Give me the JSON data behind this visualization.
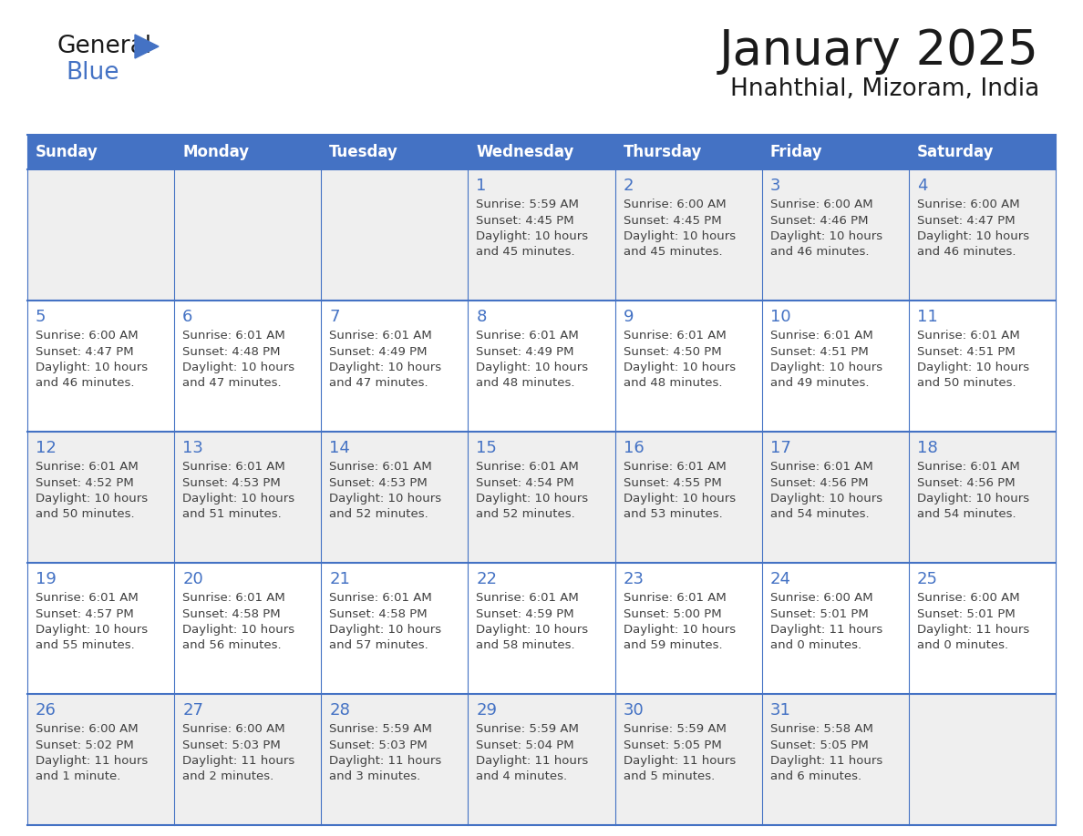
{
  "title": "January 2025",
  "subtitle": "Hnahthial, Mizoram, India",
  "header_bg": "#4472C4",
  "header_text_color": "#FFFFFF",
  "weekdays": [
    "Sunday",
    "Monday",
    "Tuesday",
    "Wednesday",
    "Thursday",
    "Friday",
    "Saturday"
  ],
  "row_bg_even": "#EFEFEF",
  "row_bg_odd": "#FFFFFF",
  "grid_line_color": "#4472C4",
  "day_number_color": "#4472C4",
  "text_color": "#404040",
  "calendar": [
    [
      {
        "day": "",
        "sunrise": "",
        "sunset": "",
        "daylight": ""
      },
      {
        "day": "",
        "sunrise": "",
        "sunset": "",
        "daylight": ""
      },
      {
        "day": "",
        "sunrise": "",
        "sunset": "",
        "daylight": ""
      },
      {
        "day": "1",
        "sunrise": "5:59 AM",
        "sunset": "4:45 PM",
        "dl1": "Daylight: 10 hours",
        "dl2": "and 45 minutes."
      },
      {
        "day": "2",
        "sunrise": "6:00 AM",
        "sunset": "4:45 PM",
        "dl1": "Daylight: 10 hours",
        "dl2": "and 45 minutes."
      },
      {
        "day": "3",
        "sunrise": "6:00 AM",
        "sunset": "4:46 PM",
        "dl1": "Daylight: 10 hours",
        "dl2": "and 46 minutes."
      },
      {
        "day": "4",
        "sunrise": "6:00 AM",
        "sunset": "4:47 PM",
        "dl1": "Daylight: 10 hours",
        "dl2": "and 46 minutes."
      }
    ],
    [
      {
        "day": "5",
        "sunrise": "6:00 AM",
        "sunset": "4:47 PM",
        "dl1": "Daylight: 10 hours",
        "dl2": "and 46 minutes."
      },
      {
        "day": "6",
        "sunrise": "6:01 AM",
        "sunset": "4:48 PM",
        "dl1": "Daylight: 10 hours",
        "dl2": "and 47 minutes."
      },
      {
        "day": "7",
        "sunrise": "6:01 AM",
        "sunset": "4:49 PM",
        "dl1": "Daylight: 10 hours",
        "dl2": "and 47 minutes."
      },
      {
        "day": "8",
        "sunrise": "6:01 AM",
        "sunset": "4:49 PM",
        "dl1": "Daylight: 10 hours",
        "dl2": "and 48 minutes."
      },
      {
        "day": "9",
        "sunrise": "6:01 AM",
        "sunset": "4:50 PM",
        "dl1": "Daylight: 10 hours",
        "dl2": "and 48 minutes."
      },
      {
        "day": "10",
        "sunrise": "6:01 AM",
        "sunset": "4:51 PM",
        "dl1": "Daylight: 10 hours",
        "dl2": "and 49 minutes."
      },
      {
        "day": "11",
        "sunrise": "6:01 AM",
        "sunset": "4:51 PM",
        "dl1": "Daylight: 10 hours",
        "dl2": "and 50 minutes."
      }
    ],
    [
      {
        "day": "12",
        "sunrise": "6:01 AM",
        "sunset": "4:52 PM",
        "dl1": "Daylight: 10 hours",
        "dl2": "and 50 minutes."
      },
      {
        "day": "13",
        "sunrise": "6:01 AM",
        "sunset": "4:53 PM",
        "dl1": "Daylight: 10 hours",
        "dl2": "and 51 minutes."
      },
      {
        "day": "14",
        "sunrise": "6:01 AM",
        "sunset": "4:53 PM",
        "dl1": "Daylight: 10 hours",
        "dl2": "and 52 minutes."
      },
      {
        "day": "15",
        "sunrise": "6:01 AM",
        "sunset": "4:54 PM",
        "dl1": "Daylight: 10 hours",
        "dl2": "and 52 minutes."
      },
      {
        "day": "16",
        "sunrise": "6:01 AM",
        "sunset": "4:55 PM",
        "dl1": "Daylight: 10 hours",
        "dl2": "and 53 minutes."
      },
      {
        "day": "17",
        "sunrise": "6:01 AM",
        "sunset": "4:56 PM",
        "dl1": "Daylight: 10 hours",
        "dl2": "and 54 minutes."
      },
      {
        "day": "18",
        "sunrise": "6:01 AM",
        "sunset": "4:56 PM",
        "dl1": "Daylight: 10 hours",
        "dl2": "and 54 minutes."
      }
    ],
    [
      {
        "day": "19",
        "sunrise": "6:01 AM",
        "sunset": "4:57 PM",
        "dl1": "Daylight: 10 hours",
        "dl2": "and 55 minutes."
      },
      {
        "day": "20",
        "sunrise": "6:01 AM",
        "sunset": "4:58 PM",
        "dl1": "Daylight: 10 hours",
        "dl2": "and 56 minutes."
      },
      {
        "day": "21",
        "sunrise": "6:01 AM",
        "sunset": "4:58 PM",
        "dl1": "Daylight: 10 hours",
        "dl2": "and 57 minutes."
      },
      {
        "day": "22",
        "sunrise": "6:01 AM",
        "sunset": "4:59 PM",
        "dl1": "Daylight: 10 hours",
        "dl2": "and 58 minutes."
      },
      {
        "day": "23",
        "sunrise": "6:01 AM",
        "sunset": "5:00 PM",
        "dl1": "Daylight: 10 hours",
        "dl2": "and 59 minutes."
      },
      {
        "day": "24",
        "sunrise": "6:00 AM",
        "sunset": "5:01 PM",
        "dl1": "Daylight: 11 hours",
        "dl2": "and 0 minutes."
      },
      {
        "day": "25",
        "sunrise": "6:00 AM",
        "sunset": "5:01 PM",
        "dl1": "Daylight: 11 hours",
        "dl2": "and 0 minutes."
      }
    ],
    [
      {
        "day": "26",
        "sunrise": "6:00 AM",
        "sunset": "5:02 PM",
        "dl1": "Daylight: 11 hours",
        "dl2": "and 1 minute."
      },
      {
        "day": "27",
        "sunrise": "6:00 AM",
        "sunset": "5:03 PM",
        "dl1": "Daylight: 11 hours",
        "dl2": "and 2 minutes."
      },
      {
        "day": "28",
        "sunrise": "5:59 AM",
        "sunset": "5:03 PM",
        "dl1": "Daylight: 11 hours",
        "dl2": "and 3 minutes."
      },
      {
        "day": "29",
        "sunrise": "5:59 AM",
        "sunset": "5:04 PM",
        "dl1": "Daylight: 11 hours",
        "dl2": "and 4 minutes."
      },
      {
        "day": "30",
        "sunrise": "5:59 AM",
        "sunset": "5:05 PM",
        "dl1": "Daylight: 11 hours",
        "dl2": "and 5 minutes."
      },
      {
        "day": "31",
        "sunrise": "5:58 AM",
        "sunset": "5:05 PM",
        "dl1": "Daylight: 11 hours",
        "dl2": "and 6 minutes."
      },
      {
        "day": "",
        "sunrise": "",
        "sunset": "",
        "dl1": "",
        "dl2": ""
      }
    ]
  ]
}
